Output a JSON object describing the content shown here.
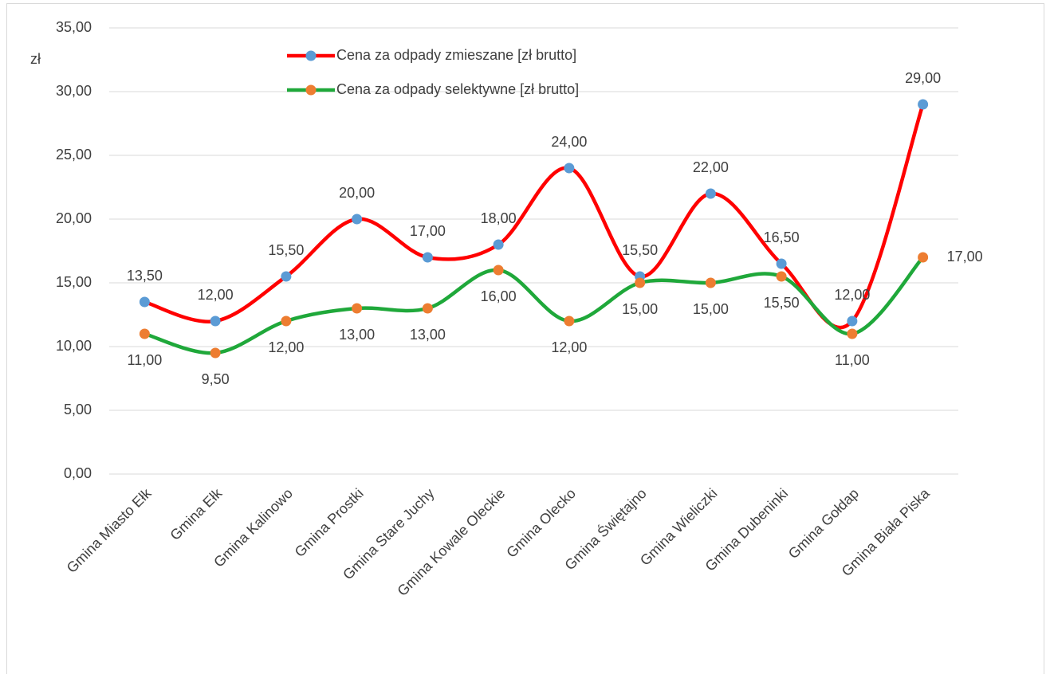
{
  "chart_data": {
    "type": "line",
    "y_label": "zł",
    "categories": [
      "Gmina Miasto Ełk",
      "Gmina Ełk",
      "Gmina Kalinowo",
      "Gmina Prostki",
      "Gmina Stare Juchy",
      "Gmina Kowale Oleckie",
      "Gmina Olecko",
      "Gmina Świętajno",
      "Gmina Wieliczki",
      "Gmina Dubeninki",
      "Gmina Gołdap",
      "Gmina Biała Piska"
    ],
    "series": [
      {
        "name": "Cena za odpady zmieszane [zł brutto]",
        "color": "#ff0000",
        "marker_color": "#5b9bd5",
        "values": [
          13.5,
          12,
          15.5,
          20,
          17,
          18,
          24,
          15.5,
          22,
          16.5,
          12,
          29
        ],
        "value_labels": [
          "13,50",
          "12,00",
          "15,50",
          "20,00",
          "17,00",
          "18,00",
          "24,00",
          "15,50",
          "22,00",
          "16,50",
          "12,00",
          "29,00"
        ]
      },
      {
        "name": "Cena za odpady selektywne [zł brutto]",
        "color": "#1fa83a",
        "marker_color": "#ed7d31",
        "values": [
          11,
          9.5,
          12,
          13,
          13,
          16,
          12,
          15,
          15,
          15.5,
          11,
          17
        ],
        "value_labels": [
          "11,00",
          "9,50",
          "12,00",
          "13,00",
          "13,00",
          "16,00",
          "12,00",
          "15,00",
          "15,00",
          "15,50",
          "11,00",
          "17,00"
        ]
      }
    ],
    "ylim": [
      0,
      35
    ],
    "yticks": [
      {
        "value": 0,
        "label": "0,00"
      },
      {
        "value": 5,
        "label": "5,00"
      },
      {
        "value": 10,
        "label": "10,00"
      },
      {
        "value": 15,
        "label": "15,00"
      },
      {
        "value": 20,
        "label": "20,00"
      },
      {
        "value": 25,
        "label": "25,00"
      },
      {
        "value": 30,
        "label": "30,00"
      },
      {
        "value": 35,
        "label": "35,00"
      }
    ],
    "grid": true,
    "smooth": true
  }
}
